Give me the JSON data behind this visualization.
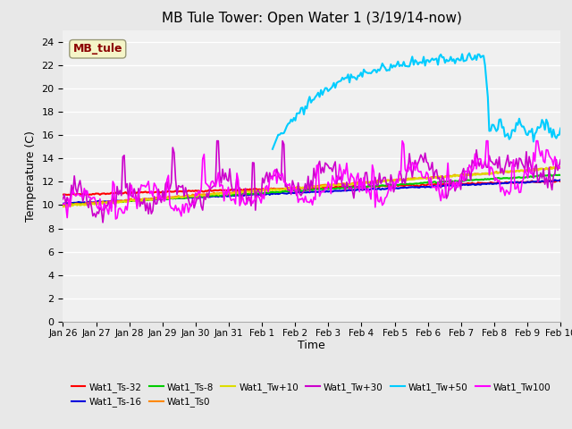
{
  "title": "MB Tule Tower: Open Water 1 (3/19/14-now)",
  "xlabel": "Time",
  "ylabel": "Temperature (C)",
  "ylim": [
    0,
    25
  ],
  "yticks": [
    0,
    2,
    4,
    6,
    8,
    10,
    12,
    14,
    16,
    18,
    20,
    22,
    24
  ],
  "fig_bg": "#e8e8e8",
  "plot_bg": "#f0f0f0",
  "annotation_text": "MB_tule",
  "annotation_color": "#8b0000",
  "annotation_bg": "#f5f5c8",
  "series_order": [
    "Wat1_Ts-32",
    "Wat1_Ts-16",
    "Wat1_Ts-8",
    "Wat1_Ts0",
    "Wat1_Tw+10",
    "Wat1_Tw+30",
    "Wat1_Tw+50",
    "Wat1_Tw100"
  ],
  "series_colors": {
    "Wat1_Ts-32": "#ff0000",
    "Wat1_Ts-16": "#0000dd",
    "Wat1_Ts-8": "#00cc00",
    "Wat1_Ts0": "#ff8800",
    "Wat1_Tw+10": "#dddd00",
    "Wat1_Tw+30": "#cc00cc",
    "Wat1_Tw+50": "#00ccff",
    "Wat1_Tw100": "#ff00ff"
  },
  "xtick_labels": [
    "Jan 26",
    "Jan 27",
    "Jan 28",
    "Jan 29",
    "Jan 30",
    "Jan 31",
    "Feb 1",
    "Feb 2",
    "Feb 3",
    "Feb 4",
    "Feb 5",
    "Feb 6",
    "Feb 7",
    "Feb 8",
    "Feb 9",
    "Feb 10"
  ]
}
